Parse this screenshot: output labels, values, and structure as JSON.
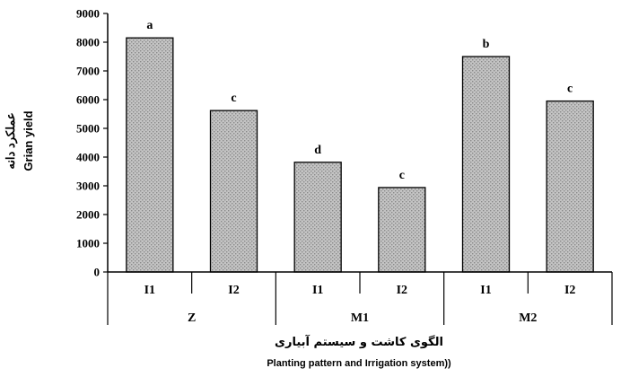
{
  "chart_data": {
    "type": "bar",
    "ylabel_fa": "عملکرد دانه",
    "ylabel_en": "Grian yield",
    "xlabel_fa": "الگوی کاشت و سیستم آبیاری",
    "xlabel_en": "Planting pattern and Irrigation system))",
    "ylim": [
      0,
      9000
    ],
    "yticks": [
      "0",
      "1000",
      "2000",
      "3000",
      "4000",
      "5000",
      "6000",
      "7000",
      "8000",
      "9000"
    ],
    "groups": [
      "Z",
      "M1",
      "M2"
    ],
    "categories": [
      "I1",
      "I2",
      "I1",
      "I2",
      "I1",
      "I2"
    ],
    "values": [
      8150,
      5620,
      3820,
      2940,
      7500,
      5950
    ],
    "significance": [
      "a",
      "c",
      "d",
      "c",
      "b",
      "c"
    ],
    "grid": false,
    "bar_pattern": "dotted-gray"
  }
}
